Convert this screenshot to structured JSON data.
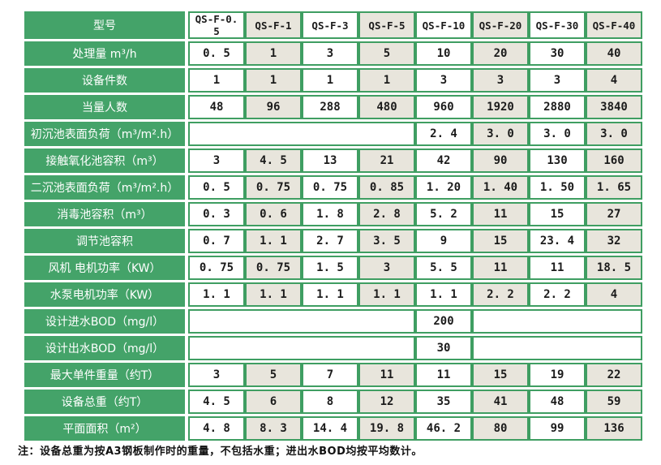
{
  "colors": {
    "green": "#44a369",
    "green-border": "#3f9e62",
    "beige": "#e8e5dc",
    "value-text": "#1b1b1b"
  },
  "table": {
    "header": {
      "label": "型号",
      "models": [
        "QS-F-0. 5",
        "QS-F-1",
        "QS-F-3",
        "QS-F-5",
        "QS-F-10",
        "QS-F-20",
        "QS-F-30",
        "QS-F-40"
      ]
    },
    "rows": [
      {
        "label": "处理量 m³/h",
        "cells": [
          "0. 5",
          "1",
          "3",
          "5",
          "10",
          "20",
          "30",
          "40"
        ]
      },
      {
        "label": "设备件数",
        "cells": [
          "1",
          "1",
          "1",
          "1",
          "3",
          "3",
          "3",
          "4"
        ]
      },
      {
        "label": "当量人数",
        "cells": [
          "48",
          "96",
          "288",
          "480",
          "960",
          "1920",
          "2880",
          "3840"
        ]
      },
      {
        "label": "初沉池表面负荷（m³/m².h）",
        "cells": [
          {
            "span": 4,
            "text": ""
          },
          "2. 4",
          "3. 0",
          "3. 0",
          "3. 0"
        ]
      },
      {
        "label": "接触氧化池容积（m³）",
        "cells": [
          "3",
          "4. 5",
          "13",
          "21",
          "42",
          "90",
          "130",
          "160"
        ]
      },
      {
        "label": "二沉池表面负荷（m³/m².h）",
        "cells": [
          "0. 5",
          "0. 75",
          "0. 75",
          "0. 85",
          "1. 20",
          "1. 40",
          "1. 50",
          "1. 65"
        ]
      },
      {
        "label": "消毒池容积（m³）",
        "cells": [
          "0. 3",
          "0. 6",
          "1. 8",
          "2. 8",
          "5. 2",
          "11",
          "15",
          "27"
        ]
      },
      {
        "label": "调节池容积",
        "cells": [
          "0. 7",
          "1. 1",
          "2. 7",
          "3. 5",
          "9",
          "15",
          "23. 4",
          "32"
        ]
      },
      {
        "label": "风机 电机功率（KW）",
        "cells": [
          "0. 75",
          "0. 75",
          "1. 5",
          "3",
          "5. 5",
          "11",
          "11",
          "18. 5"
        ]
      },
      {
        "label": "水泵电机功率（KW）",
        "cells": [
          "1. 1",
          "1. 1",
          "1. 1",
          "1. 1",
          "1. 1",
          "2. 2",
          "2. 2",
          "4"
        ]
      },
      {
        "label": "设计进水BOD（mg/l）",
        "cells": [
          {
            "span": 4,
            "text": ""
          },
          "200",
          {
            "span": 3,
            "text": ""
          }
        ]
      },
      {
        "label": "设计出水BOD（mg/l）",
        "cells": [
          {
            "span": 4,
            "text": ""
          },
          "30",
          {
            "span": 3,
            "text": ""
          }
        ]
      },
      {
        "label": "最大单件重量（约T）",
        "cells": [
          "3",
          "5",
          "7",
          "11",
          "11",
          "15",
          "19",
          "22"
        ]
      },
      {
        "label": "设备总重（约T）",
        "cells": [
          "4. 5",
          "6",
          "8",
          "12",
          "35",
          "41",
          "48",
          "59"
        ]
      },
      {
        "label": "平面面积（m²）",
        "cells": [
          "4. 8",
          "8. 3",
          "14. 4",
          "19. 8",
          "46. 2",
          "80",
          "99",
          "136"
        ]
      }
    ]
  },
  "note": "注：设备总重为按A3钢板制作时的重量，不包括水重；进出水BOD均按平均数计。"
}
